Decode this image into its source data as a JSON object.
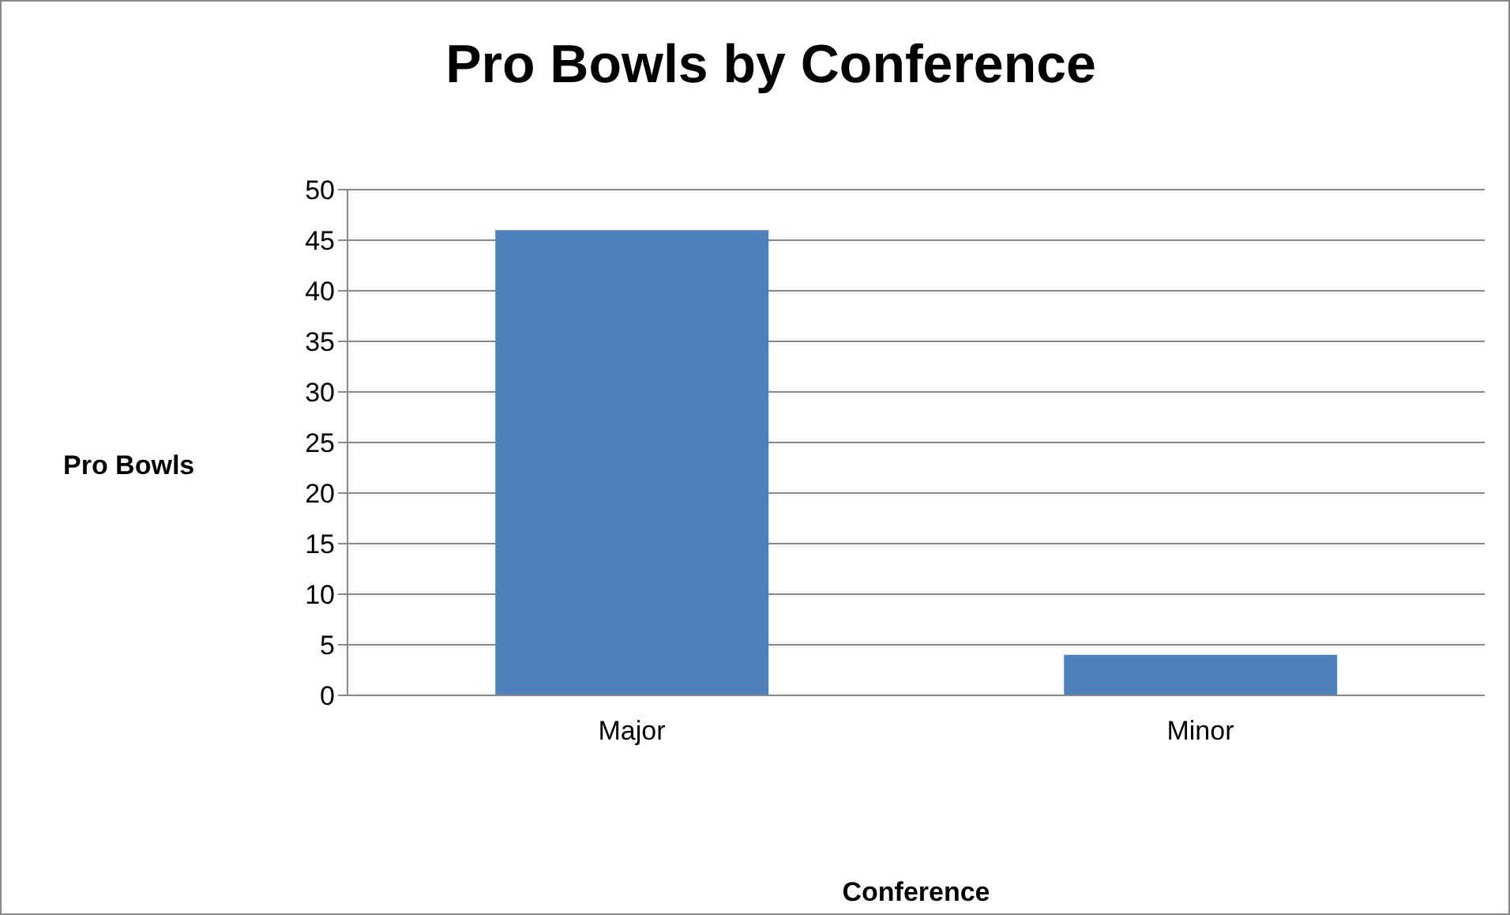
{
  "chart_data": {
    "type": "bar",
    "title": "Pro Bowls by Conference",
    "xlabel": "Conference",
    "ylabel": "Pro Bowls",
    "categories": [
      "Major",
      "Minor"
    ],
    "values": [
      46,
      4
    ],
    "color": "#4f81bd",
    "ylim": [
      0,
      50
    ],
    "yticks": [
      0,
      5,
      10,
      15,
      20,
      25,
      30,
      35,
      40,
      45,
      50
    ],
    "grid": "y"
  }
}
